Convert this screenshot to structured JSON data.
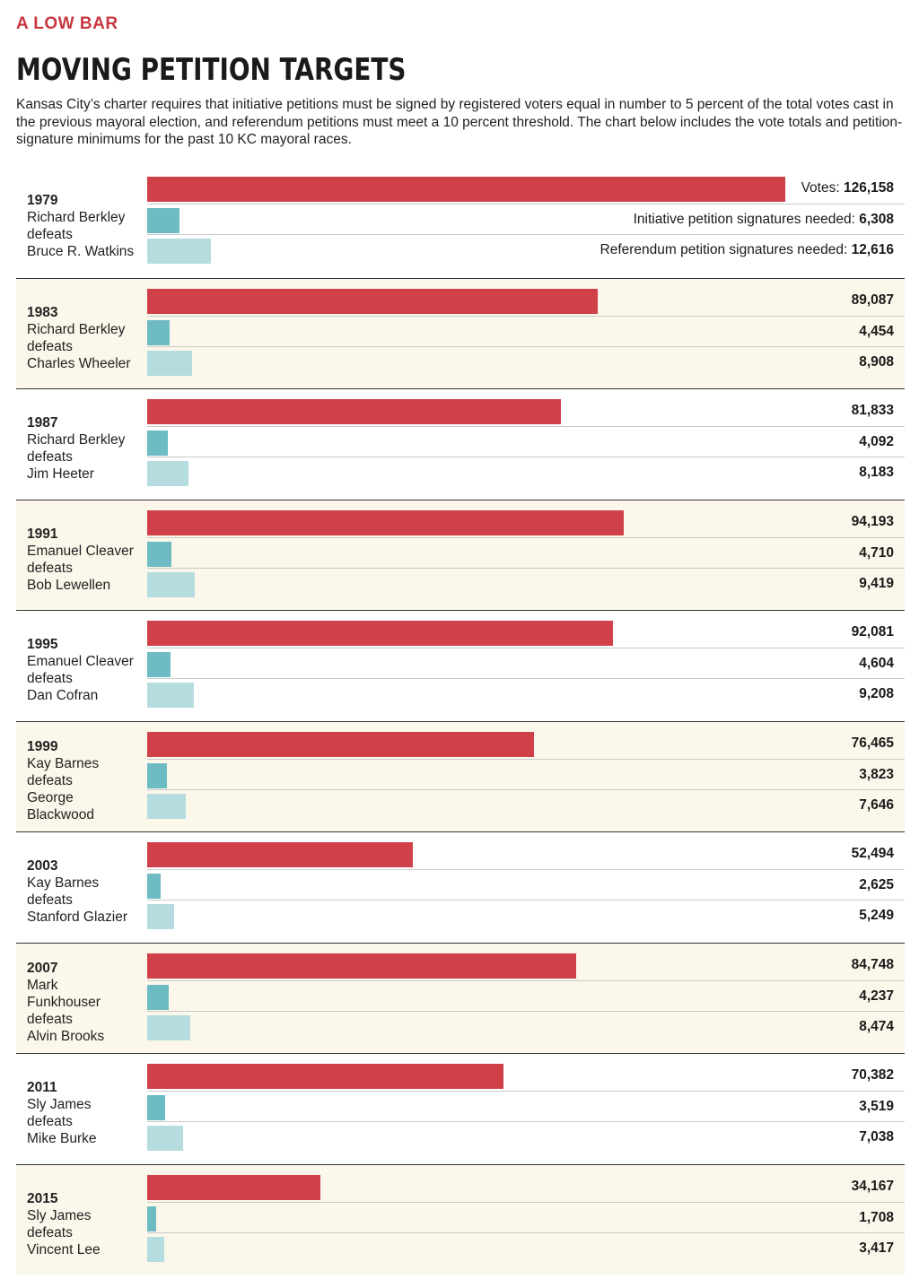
{
  "header": {
    "kicker": "A LOW BAR",
    "title": "MOVING PETITION TARGETS",
    "intro": "Kansas City’s charter requires that initiative petitions must be signed by registered voters equal in number to 5 percent of the total votes cast in the previous mayoral election, and referendum petitions must meet a 10 percent threshold. The chart below includes the vote totals and petition-signature minimums for the past 10 KC mayoral races."
  },
  "legend": {
    "votes": "Votes:",
    "initiative": "Initiative petition signatures needed:",
    "referendum": "Referendum petition signatures needed:"
  },
  "colors": {
    "accent": "#c8373f",
    "votes": "#cf4049",
    "initiative": "#6dbbc3",
    "referendum": "#b5dde0",
    "shade": "#fbf7ea"
  },
  "chart_data": {
    "type": "bar",
    "orientation": "horizontal",
    "categories": [
      "1979",
      "1983",
      "1987",
      "1991",
      "1995",
      "1999",
      "2003",
      "2007",
      "2011",
      "2015"
    ],
    "series": [
      {
        "name": "Votes",
        "values": [
          126158,
          89087,
          81833,
          94193,
          92081,
          76465,
          52494,
          84748,
          70382,
          34167
        ]
      },
      {
        "name": "Initiative petition signatures needed",
        "values": [
          6308,
          4454,
          4092,
          4710,
          4604,
          3823,
          2625,
          4237,
          3519,
          1708
        ]
      },
      {
        "name": "Referendum petition signatures needed",
        "values": [
          12616,
          8908,
          8183,
          9419,
          9208,
          7646,
          5249,
          8474,
          7038,
          3417
        ]
      }
    ],
    "xlim": [
      0,
      126158
    ],
    "races": [
      {
        "year": "1979",
        "lines": [
          "Richard Berkley",
          "defeats",
          "Bruce R. Watkins"
        ],
        "votes": "126,158",
        "initiative": "6,308",
        "referendum": "12,616"
      },
      {
        "year": "1983",
        "lines": [
          "Richard Berkley",
          "defeats",
          "Charles Wheeler"
        ],
        "votes": "89,087",
        "initiative": "4,454",
        "referendum": "8,908"
      },
      {
        "year": "1987",
        "lines": [
          "Richard Berkley",
          "defeats",
          "Jim Heeter"
        ],
        "votes": "81,833",
        "initiative": "4,092",
        "referendum": "8,183"
      },
      {
        "year": "1991",
        "lines": [
          "Emanuel Cleaver",
          "defeats",
          "Bob Lewellen"
        ],
        "votes": "94,193",
        "initiative": "4,710",
        "referendum": "9,419"
      },
      {
        "year": "1995",
        "lines": [
          "Emanuel Cleaver",
          "defeats",
          "Dan Cofran"
        ],
        "votes": "92,081",
        "initiative": "4,604",
        "referendum": "9,208"
      },
      {
        "year": "1999",
        "lines": [
          "Kay Barnes",
          "defeats",
          "George",
          "Blackwood"
        ],
        "votes": "76,465",
        "initiative": "3,823",
        "referendum": "7,646"
      },
      {
        "year": "2003",
        "lines": [
          "Kay Barnes",
          "defeats",
          "Stanford Glazier"
        ],
        "votes": "52,494",
        "initiative": "2,625",
        "referendum": "5,249"
      },
      {
        "year": "2007",
        "lines": [
          "Mark",
          "Funkhouser",
          "defeats",
          "Alvin Brooks"
        ],
        "votes": "84,748",
        "initiative": "4,237",
        "referendum": "8,474"
      },
      {
        "year": "2011",
        "lines": [
          "Sly James",
          "defeats",
          "Mike Burke"
        ],
        "votes": "70,382",
        "initiative": "3,519",
        "referendum": "7,038"
      },
      {
        "year": "2015",
        "lines": [
          "Sly James",
          "defeats",
          "Vincent Lee"
        ],
        "votes": "34,167",
        "initiative": "1,708",
        "referendum": "3,417"
      }
    ]
  }
}
